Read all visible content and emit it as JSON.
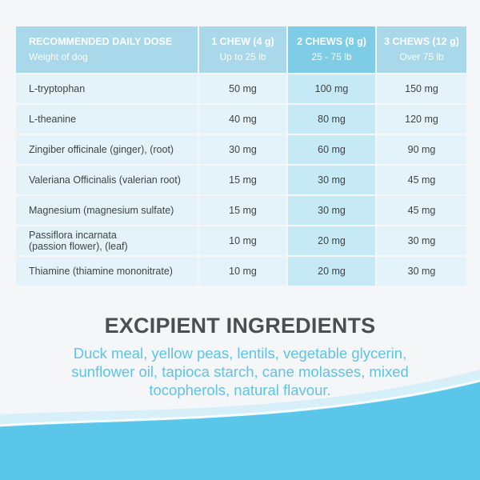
{
  "table": {
    "header": {
      "dose_label": "RECOMMENDED DAILY DOSE",
      "dose_sub": "Weight of dog",
      "columns": [
        {
          "label": "1 CHEW (4 g)",
          "sub": "Up to 25 lb"
        },
        {
          "label": "2 CHEWS (8 g)",
          "sub": "25 - 75 lb"
        },
        {
          "label": "3 CHEWS (12 g)",
          "sub": "Over 75 lb"
        }
      ]
    },
    "rows": [
      {
        "ingredient": "L-tryptophan",
        "values": [
          "50 mg",
          "100 mg",
          "150 mg"
        ]
      },
      {
        "ingredient": "L-theanine",
        "values": [
          "40 mg",
          "80 mg",
          "120 mg"
        ]
      },
      {
        "ingredient": "Zingiber officinale (ginger), (root)",
        "values": [
          "30 mg",
          "60 mg",
          "90 mg"
        ]
      },
      {
        "ingredient": "Valeriana Officinalis (valerian root)",
        "values": [
          "15 mg",
          "30 mg",
          "45 mg"
        ]
      },
      {
        "ingredient": "Magnesium (magnesium sulfate)",
        "values": [
          "15 mg",
          "30 mg",
          "45 mg"
        ]
      },
      {
        "ingredient": "Passiflora incarnata\n(passion flower), (leaf)",
        "values": [
          "10 mg",
          "20 mg",
          "30 mg"
        ]
      },
      {
        "ingredient": "Thiamine (thiamine mononitrate)",
        "values": [
          "10 mg",
          "20 mg",
          "30 mg"
        ]
      }
    ]
  },
  "excipient": {
    "title": "EXCIPIENT INGREDIENTS",
    "text": "Duck meal, yellow peas, lentils, vegetable glycerin, sunflower oil, tapioca starch, cane molasses, mixed tocopherols, natural flavour."
  },
  "colors": {
    "header_blue": "#a8d8ea",
    "header_highlight": "#7fcce6",
    "row_blue": "#e4f3f9",
    "row_highlight": "#c6e9f6",
    "accent_text": "#5ec3e6",
    "title_gray": "#4a4f53",
    "wave_blue": "#5ac6ea"
  }
}
